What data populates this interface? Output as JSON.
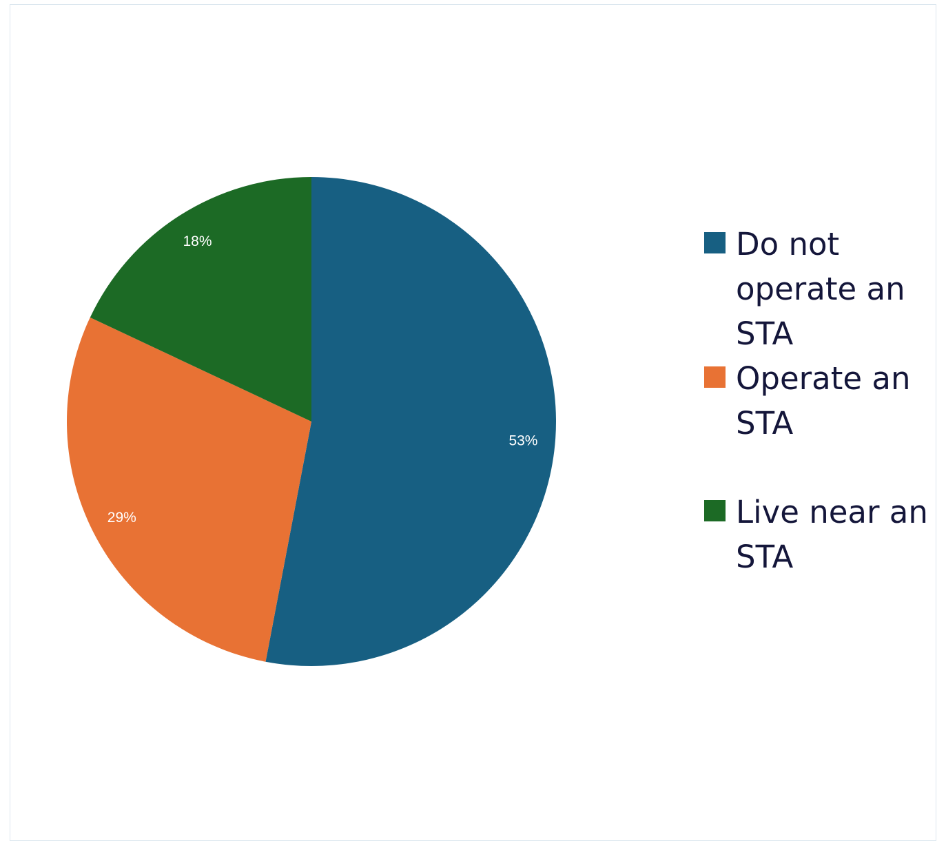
{
  "chart_data": {
    "type": "pie",
    "title": "",
    "slices": [
      {
        "label": "Do not operate an STA",
        "value": 53,
        "display": "53%",
        "color": "#175f82"
      },
      {
        "label": "Operate an STA",
        "value": 29,
        "display": "29%",
        "color": "#e87234"
      },
      {
        "label": "Live near an STA",
        "value": 18,
        "display": "18%",
        "color": "#1c6a25"
      }
    ],
    "legend_position": "right"
  },
  "legend": {
    "items": [
      {
        "label": "Do not operate an STA"
      },
      {
        "label": "Operate an STA"
      },
      {
        "label": "Live near an STA"
      }
    ]
  }
}
